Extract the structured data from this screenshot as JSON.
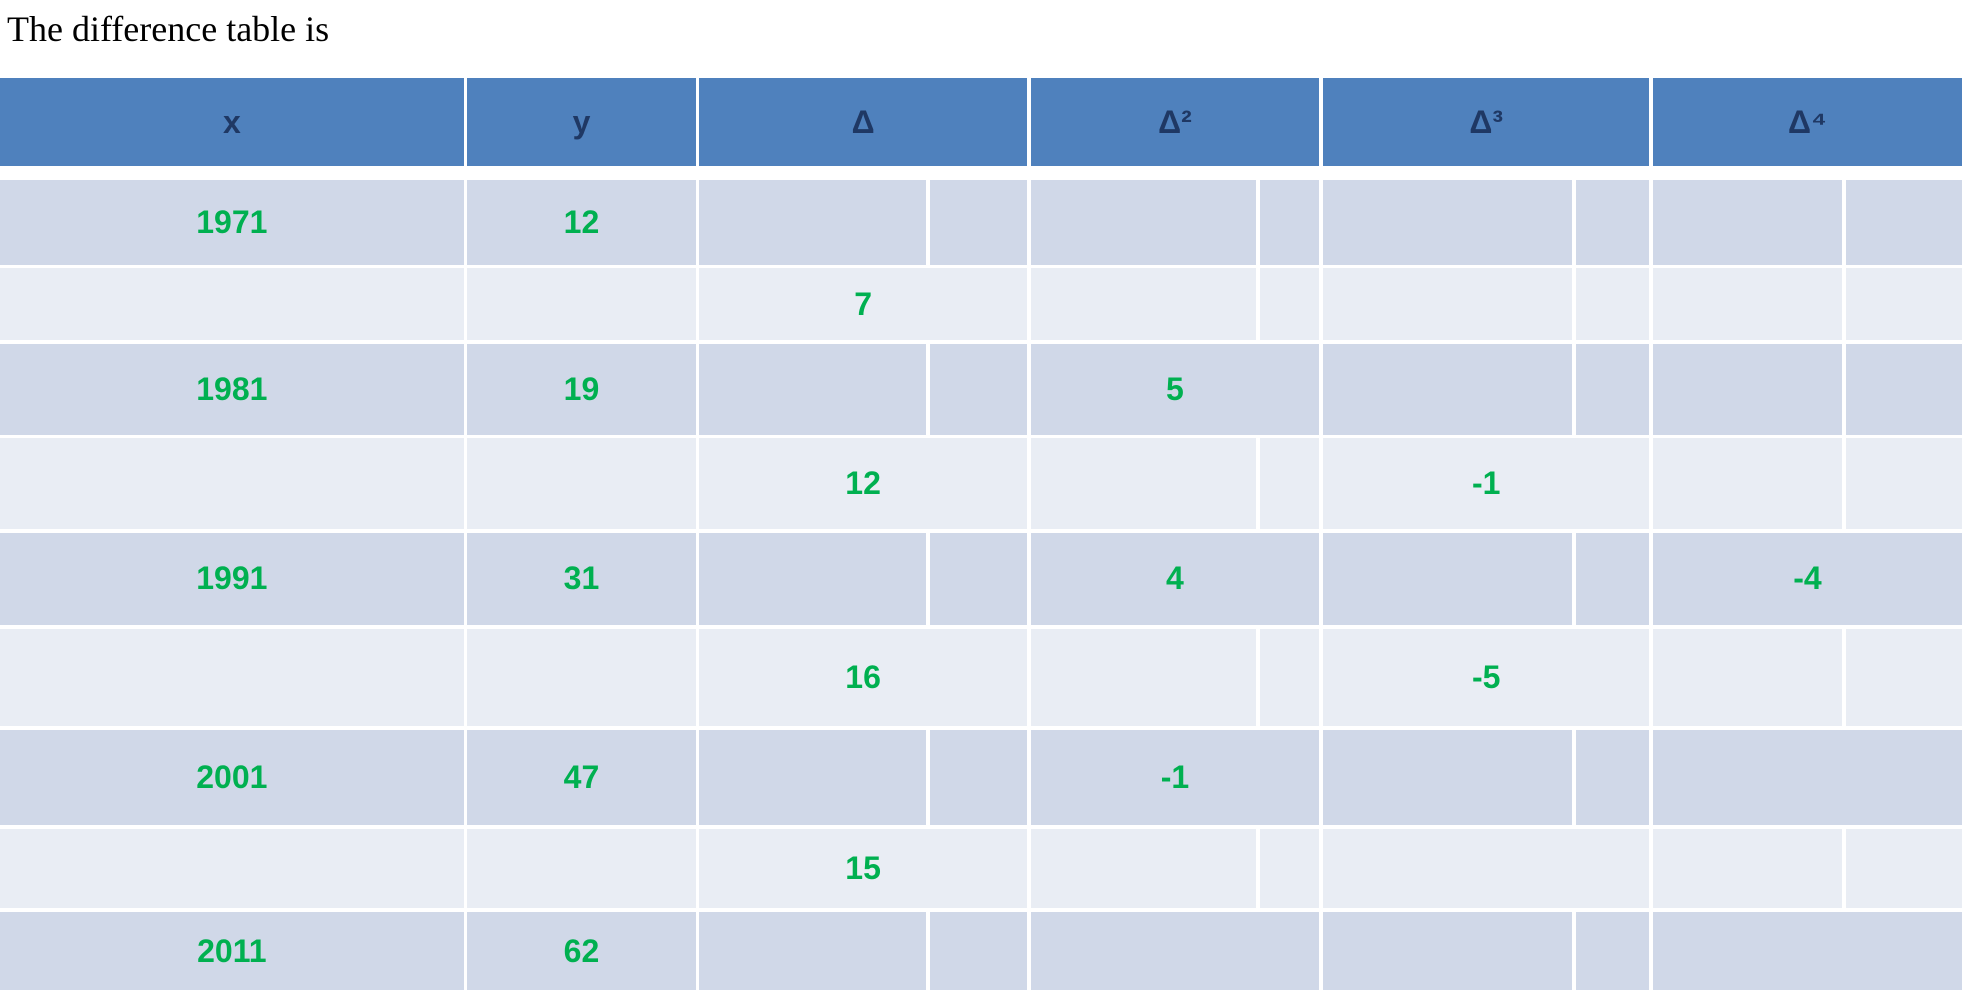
{
  "intro": "The difference table is",
  "table": {
    "headers": [
      "x",
      "y",
      "Δ",
      "Δ²",
      "Δ³",
      "Δ⁴"
    ],
    "rows": [
      [
        1971,
        12,
        null,
        null,
        null,
        null
      ],
      [
        null,
        null,
        7,
        null,
        null,
        null
      ],
      [
        1981,
        19,
        null,
        5,
        null,
        null
      ],
      [
        null,
        null,
        12,
        null,
        -1,
        null
      ],
      [
        1991,
        31,
        null,
        4,
        null,
        -4
      ],
      [
        null,
        null,
        16,
        null,
        -5,
        null
      ],
      [
        2001,
        47,
        null,
        -1,
        null,
        null
      ],
      [
        null,
        null,
        15,
        null,
        null,
        null
      ],
      [
        2011,
        62,
        null,
        null,
        null,
        null
      ]
    ]
  }
}
